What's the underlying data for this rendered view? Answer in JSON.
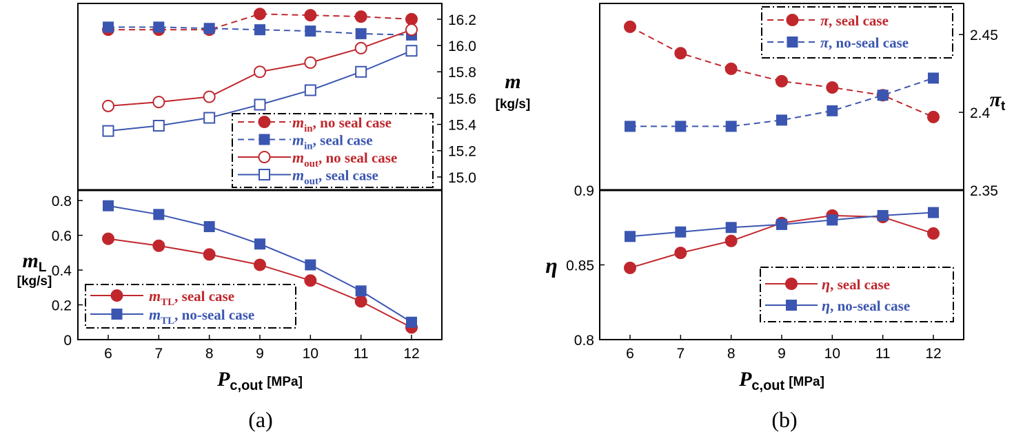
{
  "chart_data": [
    {
      "id": "a",
      "type": "line",
      "caption": "(a)",
      "x_axis": {
        "label_main": "P",
        "label_sub": "c,out",
        "label_unit": "[MPa]",
        "ticks": [
          "6",
          "7",
          "8",
          "9",
          "10",
          "11",
          "12"
        ],
        "values": [
          6,
          7,
          8,
          9,
          10,
          11,
          12
        ],
        "range": [
          5.4,
          12.6
        ]
      },
      "panels": [
        {
          "id": "a-top",
          "y_axis": {
            "side": "right",
            "label_main": "m",
            "label_sub": "",
            "label_unit": "[kg/s]",
            "range": [
              14.9,
              16.32
            ],
            "ticks": [
              "15.0",
              "15.2",
              "15.4",
              "15.6",
              "15.8",
              "16.0",
              "16.2"
            ],
            "tick_values": [
              15.0,
              15.2,
              15.4,
              15.6,
              15.8,
              16.0,
              16.2
            ]
          },
          "legend": {
            "position": "bottom-right",
            "entries": [
              {
                "name_main": "m",
                "name_sub": "in",
                "name_rest": ", no seal case",
                "series": 0
              },
              {
                "name_main": "m",
                "name_sub": "in",
                "name_rest": ", seal case",
                "series": 1
              },
              {
                "name_main": "m",
                "name_sub": "out",
                "name_rest": ", no seal case",
                "series": 2
              },
              {
                "name_main": "m",
                "name_sub": "out",
                "name_rest": ", seal case",
                "series": 3
              }
            ]
          },
          "series": [
            {
              "color": "#c0272d",
              "dash": "dashed",
              "marker": "circle-filled",
              "values": [
                16.12,
                16.12,
                16.12,
                16.24,
                16.23,
                16.22,
                16.2
              ]
            },
            {
              "color": "#3b56b0",
              "dash": "dashed",
              "marker": "square-filled",
              "values": [
                16.14,
                16.14,
                16.13,
                16.12,
                16.11,
                16.09,
                16.08
              ]
            },
            {
              "color": "#c0272d",
              "dash": "solid",
              "marker": "circle-open",
              "values": [
                15.54,
                15.57,
                15.61,
                15.8,
                15.87,
                15.98,
                16.12
              ]
            },
            {
              "color": "#3b56b0",
              "dash": "solid",
              "marker": "square-open",
              "values": [
                15.35,
                15.39,
                15.45,
                15.55,
                15.66,
                15.8,
                15.96
              ]
            }
          ]
        },
        {
          "id": "a-bottom",
          "y_axis": {
            "side": "left",
            "label_main": "m",
            "label_sub": "L",
            "label_unit": "[kg/s]",
            "range": [
              0,
              0.86
            ],
            "ticks": [
              "0",
              "0.2",
              "0.4",
              "0.6",
              "0.8"
            ],
            "tick_values": [
              0,
              0.2,
              0.4,
              0.6,
              0.8
            ]
          },
          "legend": {
            "position": "bottom-left",
            "entries": [
              {
                "name_main": "m",
                "name_sub": "TL",
                "name_rest": ", seal case",
                "series": 0
              },
              {
                "name_main": "m",
                "name_sub": "TL",
                "name_rest": ", no-seal case",
                "series": 1
              }
            ]
          },
          "series": [
            {
              "color": "#c0272d",
              "dash": "solid",
              "marker": "circle-filled",
              "values": [
                0.58,
                0.54,
                0.49,
                0.43,
                0.34,
                0.22,
                0.07
              ]
            },
            {
              "color": "#3b56b0",
              "dash": "solid",
              "marker": "square-filled",
              "values": [
                0.77,
                0.72,
                0.65,
                0.55,
                0.43,
                0.28,
                0.1
              ]
            }
          ]
        }
      ]
    },
    {
      "id": "b",
      "type": "line",
      "caption": "(b)",
      "x_axis": {
        "label_main": "P",
        "label_sub": "c,out",
        "label_unit": "[MPa]",
        "ticks": [
          "6",
          "7",
          "8",
          "9",
          "10",
          "11",
          "12"
        ],
        "values": [
          6,
          7,
          8,
          9,
          10,
          11,
          12
        ],
        "range": [
          5.4,
          12.6
        ]
      },
      "panels": [
        {
          "id": "b-top",
          "y_axis": {
            "side": "right",
            "label_main": "π",
            "label_sub": "t",
            "label_unit": "",
            "range": [
              2.35,
              2.47
            ],
            "ticks": [
              "2.35",
              "2.4",
              "2.45"
            ],
            "tick_values": [
              2.35,
              2.4,
              2.45
            ]
          },
          "legend": {
            "position": "top-right",
            "entries": [
              {
                "name_main": "π",
                "name_sub": "",
                "name_rest": ", seal case",
                "series": 0
              },
              {
                "name_main": "π",
                "name_sub": "",
                "name_rest": ", no-seal case",
                "series": 1
              }
            ]
          },
          "series": [
            {
              "color": "#c0272d",
              "dash": "dashed",
              "marker": "circle-filled",
              "values": [
                2.455,
                2.438,
                2.428,
                2.42,
                2.416,
                2.411,
                2.397
              ]
            },
            {
              "color": "#3b56b0",
              "dash": "dashed",
              "marker": "square-filled",
              "values": [
                2.391,
                2.391,
                2.391,
                2.395,
                2.401,
                2.411,
                2.422
              ]
            }
          ]
        },
        {
          "id": "b-bottom",
          "y_axis": {
            "side": "left",
            "label_main": "η",
            "label_sub": "",
            "label_unit": "",
            "range": [
              0.8,
              0.9
            ],
            "ticks": [
              "0.8",
              "0.85",
              "0.9"
            ],
            "tick_values": [
              0.8,
              0.85,
              0.9
            ]
          },
          "legend": {
            "position": "bottom-right",
            "entries": [
              {
                "name_main": "η",
                "name_sub": "",
                "name_rest": ", seal case",
                "series": 0
              },
              {
                "name_main": "η",
                "name_sub": "",
                "name_rest": ", no-seal case",
                "series": 1
              }
            ]
          },
          "series": [
            {
              "color": "#c0272d",
              "dash": "solid",
              "marker": "circle-filled",
              "values": [
                0.848,
                0.858,
                0.866,
                0.878,
                0.883,
                0.882,
                0.871
              ]
            },
            {
              "color": "#3b56b0",
              "dash": "solid",
              "marker": "square-filled",
              "values": [
                0.869,
                0.872,
                0.875,
                0.877,
                0.88,
                0.883,
                0.885
              ]
            }
          ]
        }
      ]
    }
  ]
}
